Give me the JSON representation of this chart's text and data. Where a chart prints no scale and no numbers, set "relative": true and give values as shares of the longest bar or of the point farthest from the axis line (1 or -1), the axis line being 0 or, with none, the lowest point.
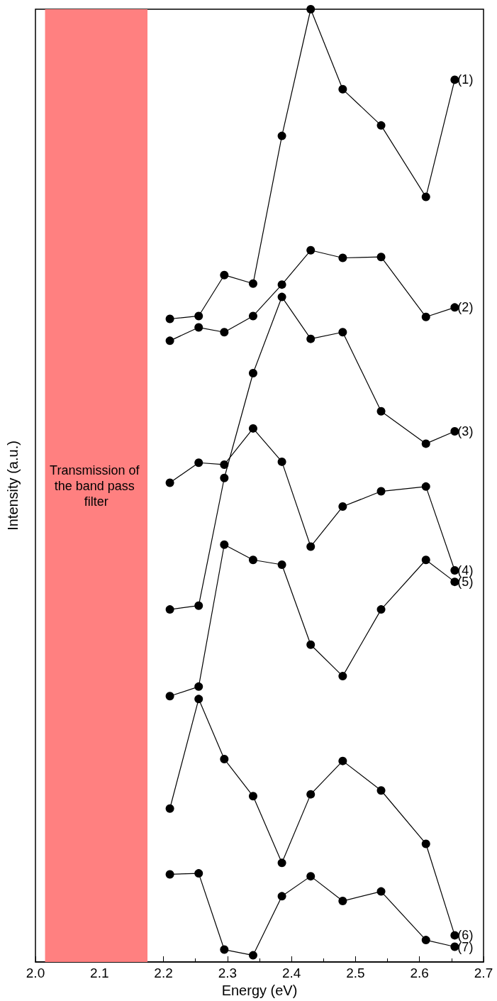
{
  "chart_data": {
    "type": "line",
    "relative": true,
    "xlabel": "Energy (eV)",
    "ylabel": "Intensity (a.u.)",
    "xlim": [
      2.0,
      2.7
    ],
    "xticks": [
      {
        "value": 2.0,
        "label": "2.0"
      },
      2.1,
      2.2,
      2.3,
      2.4,
      2.5,
      2.6,
      2.7
    ],
    "x": [
      2.21,
      2.255,
      2.295,
      2.34,
      2.385,
      2.43,
      2.48,
      2.54,
      2.61,
      2.655
    ],
    "marker": "circle",
    "line_style": "solid",
    "grid": false,
    "legend": false,
    "bands": [
      {
        "axis": "x",
        "from": 2.015,
        "to": 2.175,
        "label": "Transmission of the band pass filter",
        "color": "#ff8080"
      }
    ],
    "series": [
      {
        "name": "(1)",
        "color": "#000000",
        "values": [
          0.675,
          0.678,
          0.721,
          0.712,
          0.867,
          1,
          0.916,
          0.878,
          0.803,
          0.926
        ]
      },
      {
        "name": "(2)",
        "color": "#000000",
        "values": [
          0.652,
          0.666,
          0.661,
          0.678,
          0.711,
          0.747,
          0.739,
          0.74,
          0.677,
          0.687
        ]
      },
      {
        "name": "(3)",
        "color": "#000000",
        "values": [
          0.37,
          0.374,
          0.508,
          0.618,
          0.698,
          0.654,
          0.661,
          0.578,
          0.544,
          0.557
        ]
      },
      {
        "name": "(4)",
        "color": "#000000",
        "values": [
          0.503,
          0.524,
          0.522,
          0.56,
          0.525,
          0.436,
          0.478,
          0.494,
          0.499,
          0.411
        ]
      },
      {
        "name": "(5)",
        "color": "#000000",
        "values": [
          0.279,
          0.289,
          0.438,
          0.422,
          0.417,
          0.333,
          0.3,
          0.37,
          0.422,
          0.399
        ]
      },
      {
        "name": "(6)",
        "color": "#000000",
        "values": [
          0.161,
          0.276,
          0.213,
          0.174,
          0.104,
          0.176,
          0.211,
          0.18,
          0.124,
          0.028
        ]
      },
      {
        "name": "(7)",
        "color": "#000000",
        "values": [
          0.092,
          0.093,
          0.013,
          0.007,
          0.069,
          0.09,
          0.064,
          0.074,
          0.023,
          0.016
        ]
      }
    ]
  }
}
